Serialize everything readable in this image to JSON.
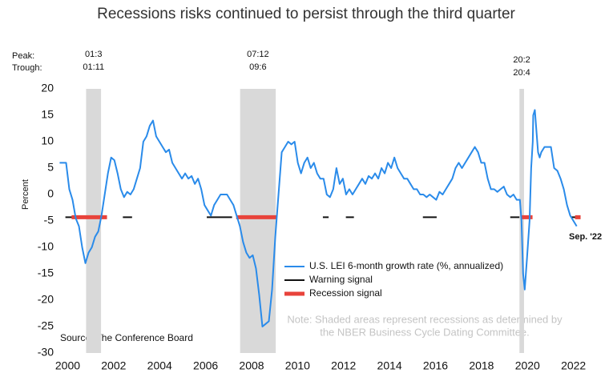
{
  "chart_data": {
    "type": "line",
    "title": "Recessions risks continued to persist through the third quarter",
    "ylabel": "Percent",
    "xlim": [
      1999.6,
      2022.5
    ],
    "xticks": [
      2000,
      2002,
      2004,
      2006,
      2008,
      2010,
      2012,
      2014,
      2016,
      2018,
      2020,
      2022
    ],
    "ylim": [
      -30,
      20
    ],
    "yticks": [
      -30,
      -25,
      -20,
      -15,
      -10,
      -5,
      0,
      5,
      10,
      15,
      20
    ],
    "peak_label": "Peak:",
    "trough_label": "Trough:",
    "recessions": [
      {
        "peak": "01:3",
        "trough": "01:11",
        "start": 2000.8,
        "end": 2001.45
      },
      {
        "peak": "07:12",
        "trough": "09:6",
        "start": 2007.5,
        "end": 2009.05
      },
      {
        "peak": "20:2",
        "trough": "20:4",
        "start": 2019.65,
        "end": 2019.85
      }
    ],
    "series": [
      {
        "name": "U.S. LEI 6-month growth rate (%, annualized)",
        "color": "#2a8bea",
        "x": [
          1999.65,
          1999.79,
          1999.93,
          2000.07,
          2000.21,
          2000.35,
          2000.49,
          2000.63,
          2000.77,
          2000.91,
          2001.05,
          2001.19,
          2001.33,
          2001.47,
          2001.61,
          2001.75,
          2001.89,
          2002.03,
          2002.17,
          2002.31,
          2002.45,
          2002.59,
          2002.73,
          2002.87,
          2003.01,
          2003.15,
          2003.29,
          2003.43,
          2003.57,
          2003.71,
          2003.85,
          2003.99,
          2004.13,
          2004.27,
          2004.41,
          2004.55,
          2004.69,
          2004.83,
          2004.97,
          2005.11,
          2005.25,
          2005.39,
          2005.53,
          2005.67,
          2005.81,
          2005.95,
          2006.09,
          2006.23,
          2006.37,
          2006.51,
          2006.65,
          2006.79,
          2006.93,
          2007.07,
          2007.21,
          2007.35,
          2007.49,
          2007.63,
          2007.77,
          2007.91,
          2008.05,
          2008.19,
          2008.33,
          2008.47,
          2008.61,
          2008.75,
          2008.89,
          2009.03,
          2009.17,
          2009.31,
          2009.45,
          2009.59,
          2009.73,
          2009.87,
          2010.01,
          2010.15,
          2010.29,
          2010.43,
          2010.57,
          2010.71,
          2010.85,
          2010.99,
          2011.13,
          2011.27,
          2011.41,
          2011.55,
          2011.69,
          2011.83,
          2011.97,
          2012.11,
          2012.25,
          2012.39,
          2012.53,
          2012.67,
          2012.81,
          2012.95,
          2013.09,
          2013.23,
          2013.37,
          2013.51,
          2013.65,
          2013.79,
          2013.93,
          2014.07,
          2014.21,
          2014.35,
          2014.49,
          2014.63,
          2014.77,
          2014.91,
          2015.05,
          2015.19,
          2015.33,
          2015.47,
          2015.61,
          2015.75,
          2015.89,
          2016.03,
          2016.17,
          2016.31,
          2016.45,
          2016.59,
          2016.73,
          2016.87,
          2017.01,
          2017.15,
          2017.29,
          2017.43,
          2017.57,
          2017.71,
          2017.85,
          2017.99,
          2018.13,
          2018.27,
          2018.41,
          2018.55,
          2018.69,
          2018.83,
          2018.97,
          2019.11,
          2019.25,
          2019.39,
          2019.53,
          2019.67,
          2019.74,
          2019.81,
          2019.88,
          2019.98,
          2020.09,
          2020.16,
          2020.23,
          2020.25,
          2020.32,
          2020.39,
          2020.46,
          2020.53,
          2020.6,
          2020.74,
          2020.88,
          2021.02,
          2021.16,
          2021.3,
          2021.44,
          2021.58,
          2021.72,
          2021.86,
          2022.0,
          2022.14
        ],
        "values": [
          6,
          6,
          6,
          1,
          -1,
          -4.5,
          -6,
          -10,
          -13,
          -11,
          -10,
          -8,
          -7,
          -4,
          0,
          4,
          7,
          6.5,
          4,
          1,
          -0.5,
          0.5,
          0,
          1,
          3,
          5,
          10,
          11,
          13,
          14,
          11,
          10,
          9,
          8,
          8.5,
          6,
          5,
          4,
          3,
          4,
          3,
          3.5,
          2,
          3,
          1,
          -2,
          -3,
          -4,
          -2,
          -1,
          0,
          0,
          0,
          -1,
          -2,
          -4,
          -6,
          -9,
          -11,
          -12,
          -11.5,
          -14,
          -19,
          -25,
          -24.5,
          -24,
          -18,
          -8,
          0,
          8,
          9,
          10,
          9.5,
          10,
          6,
          4,
          6,
          7,
          5,
          6,
          4,
          3,
          3,
          0,
          -0.5,
          1,
          5,
          2,
          3,
          0,
          1,
          0,
          1,
          2,
          3,
          2,
          3.5,
          3,
          4,
          3,
          5,
          4,
          6,
          5,
          7,
          5,
          4,
          3,
          3,
          2,
          1,
          1,
          0,
          0,
          -0.5,
          0,
          -0.5,
          -1,
          0.5,
          0,
          1,
          2,
          3,
          5,
          6,
          5,
          6,
          7,
          8,
          9,
          8,
          6,
          6,
          3,
          1,
          1,
          0.5,
          1,
          1.5,
          0,
          -0.5,
          0,
          -1,
          -1,
          -5,
          -15,
          -18,
          -12,
          -5,
          5,
          10,
          15,
          16,
          12,
          8,
          7,
          8,
          9,
          9,
          9,
          5,
          4.5,
          3,
          1,
          -2,
          -4,
          -5,
          -6
        ]
      }
    ],
    "warning_signal": {
      "name": "Warning signal",
      "color": "#111111",
      "level": -4.3,
      "periods": [
        [
          1999.9,
          2000.2
        ],
        [
          2002.4,
          2002.8
        ],
        [
          2006.05,
          2007.15
        ],
        [
          2011.1,
          2011.35
        ],
        [
          2012.1,
          2012.45
        ],
        [
          2015.45,
          2016.05
        ],
        [
          2019.25,
          2019.65
        ],
        [
          2021.9,
          2022.1
        ]
      ]
    },
    "recession_signal": {
      "name": "Recession signal",
      "color": "#e8433b",
      "level": -4.3,
      "periods": [
        [
          2000.17,
          2001.71
        ],
        [
          2007.33,
          2009.08
        ],
        [
          2019.73,
          2020.22
        ],
        [
          2022.07,
          2022.31
        ]
      ]
    },
    "last_label": "Sep. '22",
    "note": [
      "Note: Shaded areas represent recessions as determined by",
      "the NBER Business Cycle Dating Committee."
    ],
    "source": "Source: The Conference Board"
  }
}
